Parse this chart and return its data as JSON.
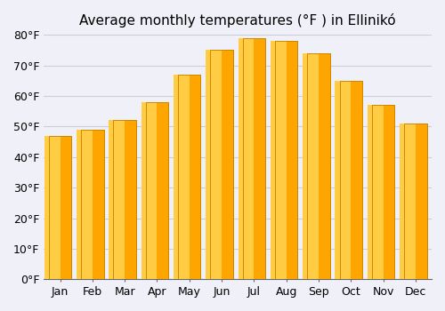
{
  "title": "Average monthly temperatures (°F ) in Ellinikó",
  "months": [
    "Jan",
    "Feb",
    "Mar",
    "Apr",
    "May",
    "Jun",
    "Jul",
    "Aug",
    "Sep",
    "Oct",
    "Nov",
    "Dec"
  ],
  "values": [
    47,
    49,
    52,
    58,
    67,
    75,
    79,
    78,
    74,
    65,
    57,
    51
  ],
  "bar_color_top": "#FFA500",
  "bar_color_bottom": "#FFD700",
  "bar_edge_color": "#CC8800",
  "background_color": "#f0f0f8",
  "ylim": [
    0,
    80
  ],
  "yticks": [
    0,
    10,
    20,
    30,
    40,
    50,
    60,
    70,
    80
  ],
  "ytick_labels": [
    "0°F",
    "10°F",
    "20°F",
    "30°F",
    "40°F",
    "50°F",
    "60°F",
    "70°F",
    "80°F"
  ],
  "title_fontsize": 11,
  "tick_fontsize": 9,
  "grid_color": "#ccccdd"
}
